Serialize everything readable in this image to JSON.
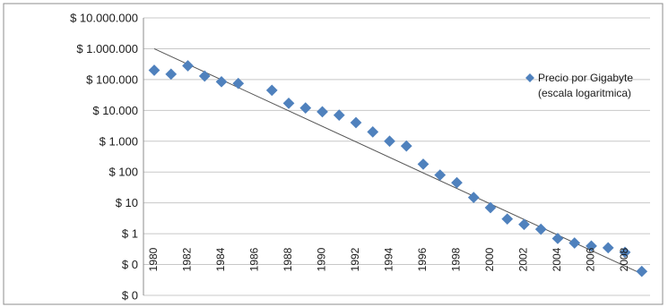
{
  "chart_data": {
    "type": "scatter",
    "title": "",
    "xlabel": "",
    "ylabel": "",
    "y_scale": "log",
    "grid": true,
    "legend_position": "right",
    "xlim": [
      1980,
      2009
    ],
    "ylim_exponent": [
      -2,
      7
    ],
    "y_tick_labels": [
      "$ 10.000.000",
      "$ 1.000.000",
      "$ 100.000",
      "$ 10.000",
      "$ 1.000",
      "$ 100",
      "$ 10",
      "$ 1",
      "$ 0",
      "$ 0"
    ],
    "x_tick_labels": [
      "1980",
      "1982",
      "1984",
      "1986",
      "1988",
      "1990",
      "1992",
      "1994",
      "1996",
      "1998",
      "2000",
      "2002",
      "2004",
      "2006",
      "2008"
    ],
    "series": [
      {
        "name": "Precio por Gigabyte (escala logaritmica)",
        "legend_lines": [
          "Precio por Gigabyte",
          "(escala logaritmica)"
        ],
        "color": "#4f81bd",
        "marker": "diamond",
        "x": [
          1980,
          1981,
          1982,
          1983,
          1984,
          1985,
          1987,
          1988,
          1989,
          1990,
          1991,
          1992,
          1993,
          1994,
          1995,
          1996,
          1997,
          1998,
          1999,
          2000,
          2001,
          2002,
          2003,
          2004,
          2005,
          2006,
          2007,
          2008,
          2009
        ],
        "y": [
          200000,
          150000,
          280000,
          130000,
          85000,
          75000,
          45000,
          17000,
          12000,
          9000,
          7000,
          4000,
          2000,
          1000,
          700,
          180,
          80,
          45,
          15,
          7,
          3,
          2,
          1.4,
          0.7,
          0.5,
          0.4,
          0.35,
          0.25,
          0.06
        ]
      },
      {
        "type": "line",
        "trendline": true,
        "color": "#555555",
        "x": [
          1980,
          2009
        ],
        "y": [
          1000000,
          0.05
        ]
      }
    ]
  }
}
